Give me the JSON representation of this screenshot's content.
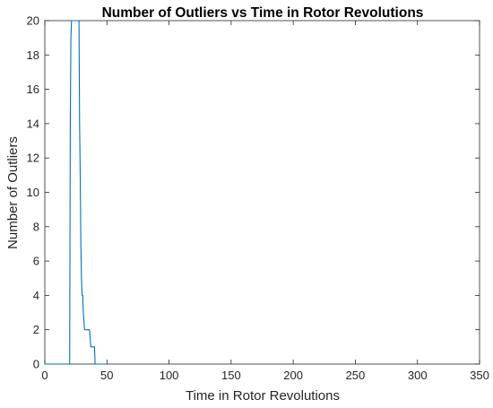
{
  "chart_data": {
    "type": "line",
    "title": "Number of Outliers vs Time in Rotor Revolutions",
    "xlabel": "Time in Rotor Revolutions",
    "ylabel": "Number of Outliers",
    "xlim": [
      0,
      350
    ],
    "ylim": [
      0,
      20
    ],
    "xticks": [
      "0",
      "50",
      "100",
      "150",
      "200",
      "250",
      "300",
      "350"
    ],
    "yticks": [
      "0",
      "2",
      "4",
      "6",
      "8",
      "10",
      "12",
      "14",
      "16",
      "18",
      "20"
    ],
    "grid": false,
    "series": [
      {
        "color": "#0072BD",
        "x": [
          0,
          20,
          20.5,
          21,
          21.5,
          22,
          23,
          24,
          25,
          26,
          27,
          27.5,
          28,
          28.5,
          29,
          29.5,
          30,
          30.5,
          31,
          32,
          33,
          34,
          34.5,
          35,
          36,
          37,
          38,
          38.5,
          39,
          40,
          40.5,
          41,
          42,
          50
        ],
        "y": [
          0,
          0,
          14,
          19,
          20,
          20,
          20,
          20,
          20,
          20,
          20,
          20,
          14,
          11,
          7,
          5,
          4,
          4,
          3,
          2,
          2,
          2,
          2,
          2,
          2,
          1,
          1,
          1,
          1,
          1,
          0,
          0,
          0,
          0
        ]
      }
    ]
  }
}
